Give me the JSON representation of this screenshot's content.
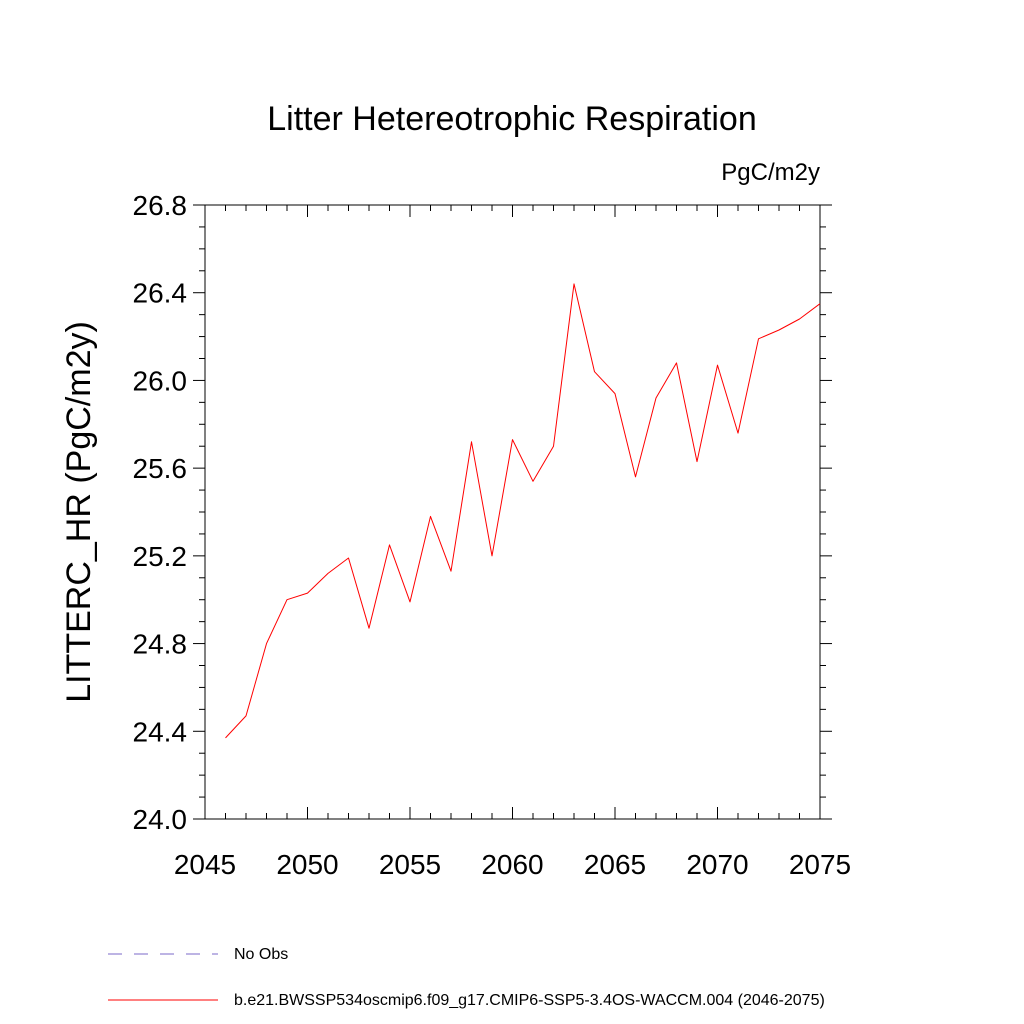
{
  "chart_data": {
    "type": "line",
    "title": "Litter Hetereotrophic Respiration",
    "units": "PgC/m2y",
    "ylabel": "LITTERC_HR  (PgC/m2y)",
    "xlabel": "",
    "xlim": [
      2045,
      2075
    ],
    "ylim": [
      24.0,
      26.8
    ],
    "x_ticks": [
      "2045",
      "2050",
      "2055",
      "2060",
      "2065",
      "2070",
      "2075"
    ],
    "y_ticks": [
      "24.0",
      "24.4",
      "24.8",
      "25.2",
      "25.6",
      "26.0",
      "26.4",
      "26.8"
    ],
    "grid": false,
    "legend_position": "bottom-left",
    "series": [
      {
        "name": "b.e21.BWSSP534oscmip6.f09_g17.CMIP6-SSP5-3.4OS-WACCM.004 (2046-2075)",
        "color": "#ff0000",
        "style": "solid",
        "x": [
          2046,
          2047,
          2048,
          2049,
          2050,
          2051,
          2052,
          2053,
          2054,
          2055,
          2056,
          2057,
          2058,
          2059,
          2060,
          2061,
          2062,
          2063,
          2064,
          2065,
          2066,
          2067,
          2068,
          2069,
          2070,
          2071,
          2072,
          2073,
          2074,
          2075
        ],
        "y": [
          24.37,
          24.47,
          24.8,
          25.0,
          25.03,
          25.12,
          25.19,
          24.87,
          25.25,
          24.99,
          25.38,
          25.13,
          25.72,
          25.2,
          25.73,
          25.54,
          25.7,
          26.44,
          26.04,
          25.94,
          25.56,
          25.92,
          26.08,
          25.63,
          26.07,
          25.76,
          26.19,
          26.23,
          26.28,
          26.35
        ]
      }
    ],
    "legend": [
      {
        "label": "No Obs",
        "color": "#7b68c8",
        "style": "dashed"
      },
      {
        "label": "b.e21.BWSSP534oscmip6.f09_g17.CMIP6-SSP5-3.4OS-WACCM.004 (2046-2075)",
        "color": "#ff0000",
        "style": "solid"
      }
    ]
  }
}
